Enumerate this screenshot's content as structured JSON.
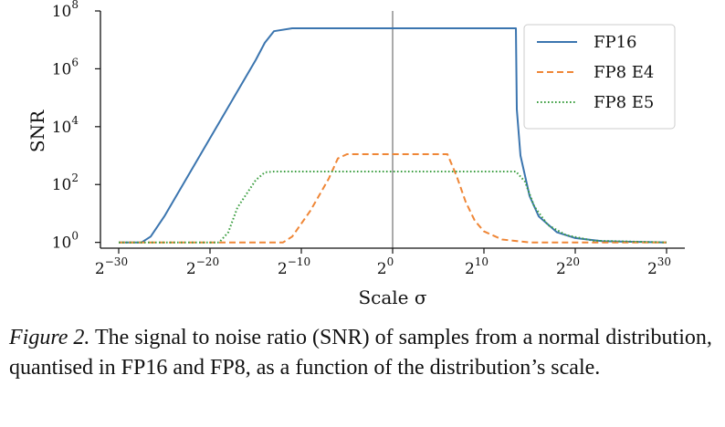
{
  "chart_data": {
    "type": "line",
    "title": "",
    "xlabel": "Scale σ",
    "ylabel": "SNR",
    "x_scale": "log2",
    "y_scale": "log10",
    "xlim_log2": [
      -32,
      32
    ],
    "ylim_log10": [
      -0.2,
      8
    ],
    "x_ticks": [
      {
        "base": "2",
        "exp": "−30"
      },
      {
        "base": "2",
        "exp": "−20"
      },
      {
        "base": "2",
        "exp": "−10"
      },
      {
        "base": "2",
        "exp": "0"
      },
      {
        "base": "2",
        "exp": "10"
      },
      {
        "base": "2",
        "exp": "20"
      },
      {
        "base": "2",
        "exp": "30"
      }
    ],
    "y_ticks": [
      {
        "base": "10",
        "exp": "0"
      },
      {
        "base": "10",
        "exp": "2"
      },
      {
        "base": "10",
        "exp": "4"
      },
      {
        "base": "10",
        "exp": "6"
      },
      {
        "base": "10",
        "exp": "8"
      }
    ],
    "vline_log2": 0,
    "vline_color": "#aaaaaa",
    "grid": false,
    "legend_position": "top-right",
    "series": [
      {
        "name": "FP16",
        "color": "#3b75af",
        "style": "solid",
        "points_log2_log10": [
          [
            -30,
            0
          ],
          [
            -27.5,
            0
          ],
          [
            -26.5,
            0.2
          ],
          [
            -25,
            0.9
          ],
          [
            -20,
            3.6
          ],
          [
            -15,
            6.3
          ],
          [
            -14,
            6.9
          ],
          [
            -13,
            7.3
          ],
          [
            -11,
            7.4
          ],
          [
            0,
            7.4
          ],
          [
            13.5,
            7.4
          ],
          [
            13.6,
            4.6
          ],
          [
            14,
            3.0
          ],
          [
            15,
            1.6
          ],
          [
            16,
            0.9
          ],
          [
            18,
            0.35
          ],
          [
            20,
            0.15
          ],
          [
            23,
            0.04
          ],
          [
            30,
            0
          ]
        ]
      },
      {
        "name": "FP8 E4",
        "color": "#ef8636",
        "style": "dashed",
        "points_log2_log10": [
          [
            -30,
            0
          ],
          [
            -12,
            0
          ],
          [
            -11,
            0.2
          ],
          [
            -9,
            1.1
          ],
          [
            -7,
            2.2
          ],
          [
            -6,
            2.9
          ],
          [
            -5,
            3.05
          ],
          [
            0,
            3.05
          ],
          [
            6,
            3.05
          ],
          [
            7,
            2.3
          ],
          [
            8,
            1.4
          ],
          [
            9,
            0.75
          ],
          [
            10,
            0.38
          ],
          [
            12,
            0.1
          ],
          [
            15,
            0
          ],
          [
            30,
            0
          ]
        ]
      },
      {
        "name": "FP8 E5",
        "color": "#3b9e40",
        "style": "dotted",
        "points_log2_log10": [
          [
            -30,
            0
          ],
          [
            -19,
            0
          ],
          [
            -18,
            0.35
          ],
          [
            -17,
            1.2
          ],
          [
            -15,
            2.15
          ],
          [
            -14,
            2.42
          ],
          [
            -13,
            2.45
          ],
          [
            0,
            2.45
          ],
          [
            13.5,
            2.45
          ],
          [
            14.5,
            2.1
          ],
          [
            15.5,
            1.25
          ],
          [
            17,
            0.6
          ],
          [
            19,
            0.25
          ],
          [
            22,
            0.06
          ],
          [
            30,
            0
          ]
        ]
      }
    ]
  },
  "caption": {
    "label": "Figure 2.",
    "text": " The signal to noise ratio (SNR) of samples from a normal distribution, quantised in FP16 and FP8, as a function of the distribution’s scale."
  }
}
